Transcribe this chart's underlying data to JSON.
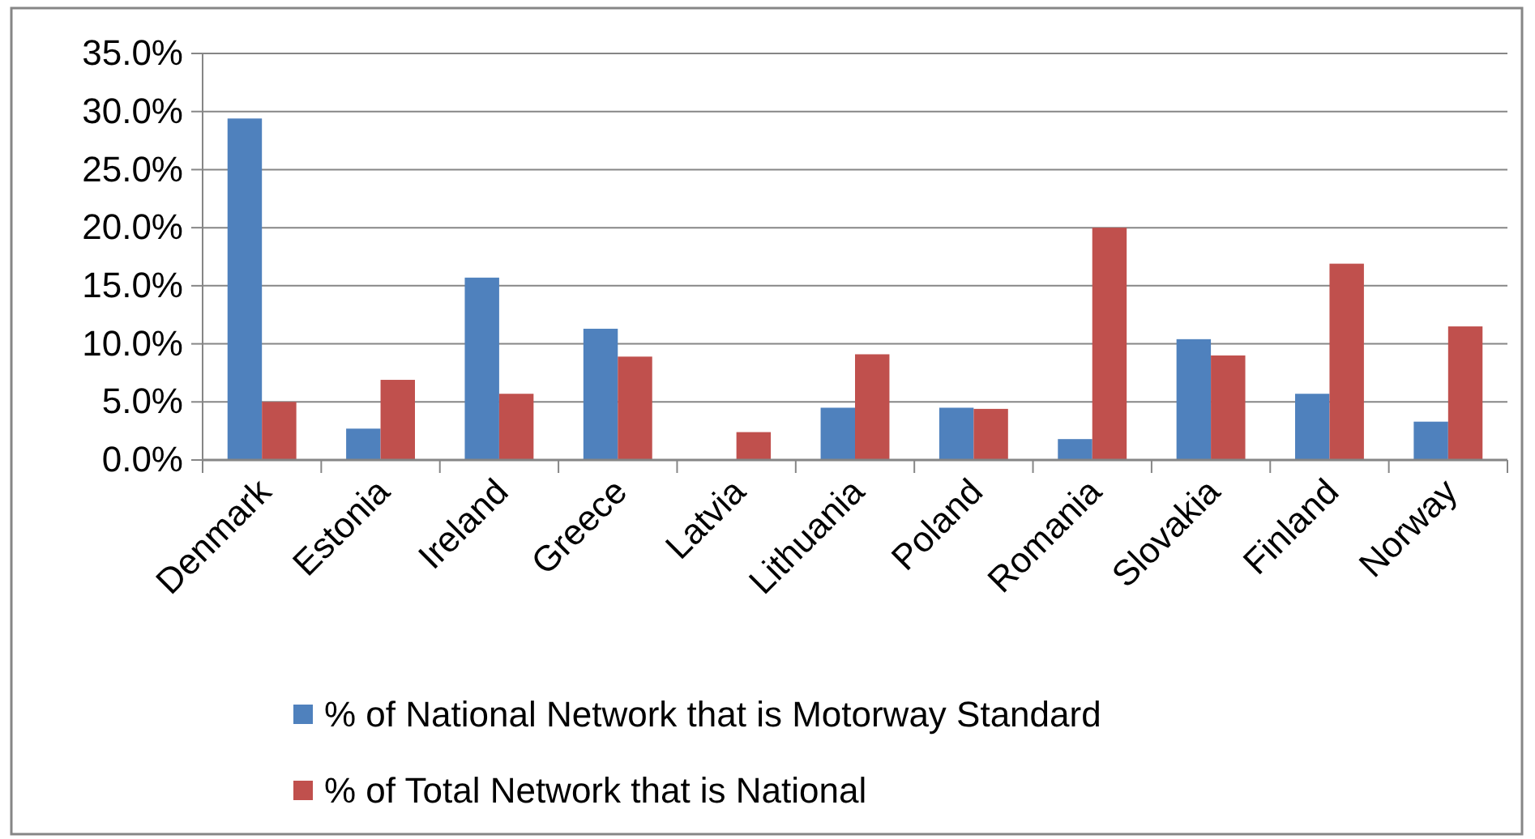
{
  "chart_data": {
    "type": "bar",
    "categories": [
      "Denmark",
      "Estonia",
      "Ireland",
      "Greece",
      "Latvia",
      "Lithuania",
      "Poland",
      "Romania",
      "Slovakia",
      "Finland",
      "Norway"
    ],
    "series": [
      {
        "name": "% of National Network that is Motorway Standard",
        "color": "#4f81bd",
        "values": [
          29.4,
          2.7,
          15.7,
          11.3,
          null,
          4.5,
          4.5,
          1.8,
          10.4,
          5.7,
          3.3
        ]
      },
      {
        "name": "% of Total Network that is National",
        "color": "#c0504d",
        "values": [
          5.0,
          6.9,
          5.7,
          8.9,
          2.4,
          9.1,
          4.4,
          20.0,
          9.0,
          16.9,
          11.5
        ]
      }
    ],
    "ylim": [
      0,
      35
    ],
    "yticks": [
      {
        "value": 0,
        "label": "0.0%"
      },
      {
        "value": 5,
        "label": "5.0%"
      },
      {
        "value": 10,
        "label": "10.0%"
      },
      {
        "value": 15,
        "label": "15.0%"
      },
      {
        "value": 20,
        "label": "20.0%"
      },
      {
        "value": 25,
        "label": "25.0%"
      },
      {
        "value": 30,
        "label": "30.0%"
      },
      {
        "value": 35,
        "label": "35.0%"
      }
    ],
    "grid": "y",
    "legend": "bottom"
  }
}
